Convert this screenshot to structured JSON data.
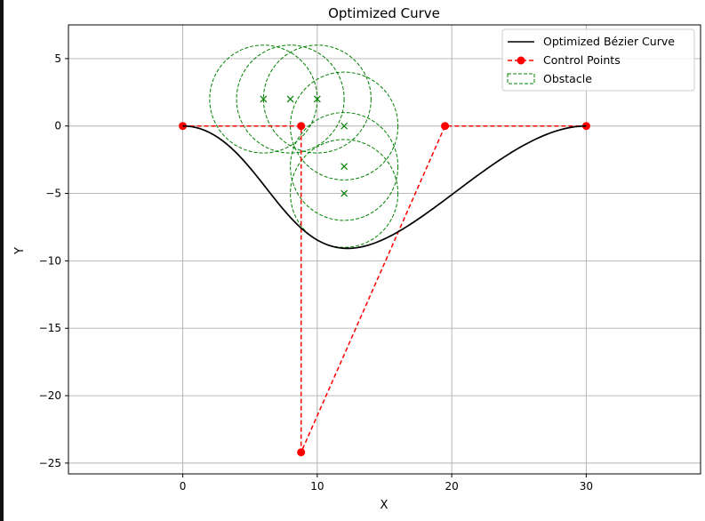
{
  "chart_data": {
    "type": "line",
    "title": "Optimized Curve",
    "xlabel": "X",
    "ylabel": "Y",
    "xlim": [
      -8.5,
      38.5
    ],
    "ylim": [
      -25.8,
      7.5
    ],
    "xticks": [
      0,
      10,
      20,
      30
    ],
    "yticks": [
      5,
      0,
      -5,
      -10,
      -15,
      -20,
      -25
    ],
    "x_tick_labels": [
      "0",
      "10",
      "20",
      "30"
    ],
    "y_tick_labels": [
      "5",
      "0",
      "−5",
      "−10",
      "−15",
      "−20",
      "−25"
    ],
    "grid": true,
    "legend_position": "top-right",
    "colors": {
      "curve": "#000000",
      "control": "#ff0000",
      "obstacle": "#008000",
      "grid": "#b0b0b0"
    },
    "series": [
      {
        "name": "Optimized Bézier Curve",
        "kind": "bezier",
        "control_points": [
          [
            0,
            0
          ],
          [
            8.8,
            0
          ],
          [
            8.8,
            -24.2
          ],
          [
            19.5,
            0
          ],
          [
            30,
            0
          ]
        ]
      },
      {
        "name": "Control Points",
        "kind": "dashed-line-markers",
        "x": [
          0,
          8.8,
          8.8,
          19.5,
          30
        ],
        "y": [
          0,
          0,
          -24.2,
          0,
          0
        ]
      },
      {
        "name": "Obstacle",
        "kind": "circles",
        "radius": 4,
        "centers": [
          [
            6,
            2
          ],
          [
            8,
            2
          ],
          [
            10,
            2
          ],
          [
            12,
            0
          ],
          [
            12,
            -3
          ],
          [
            12,
            -5
          ]
        ]
      }
    ]
  }
}
